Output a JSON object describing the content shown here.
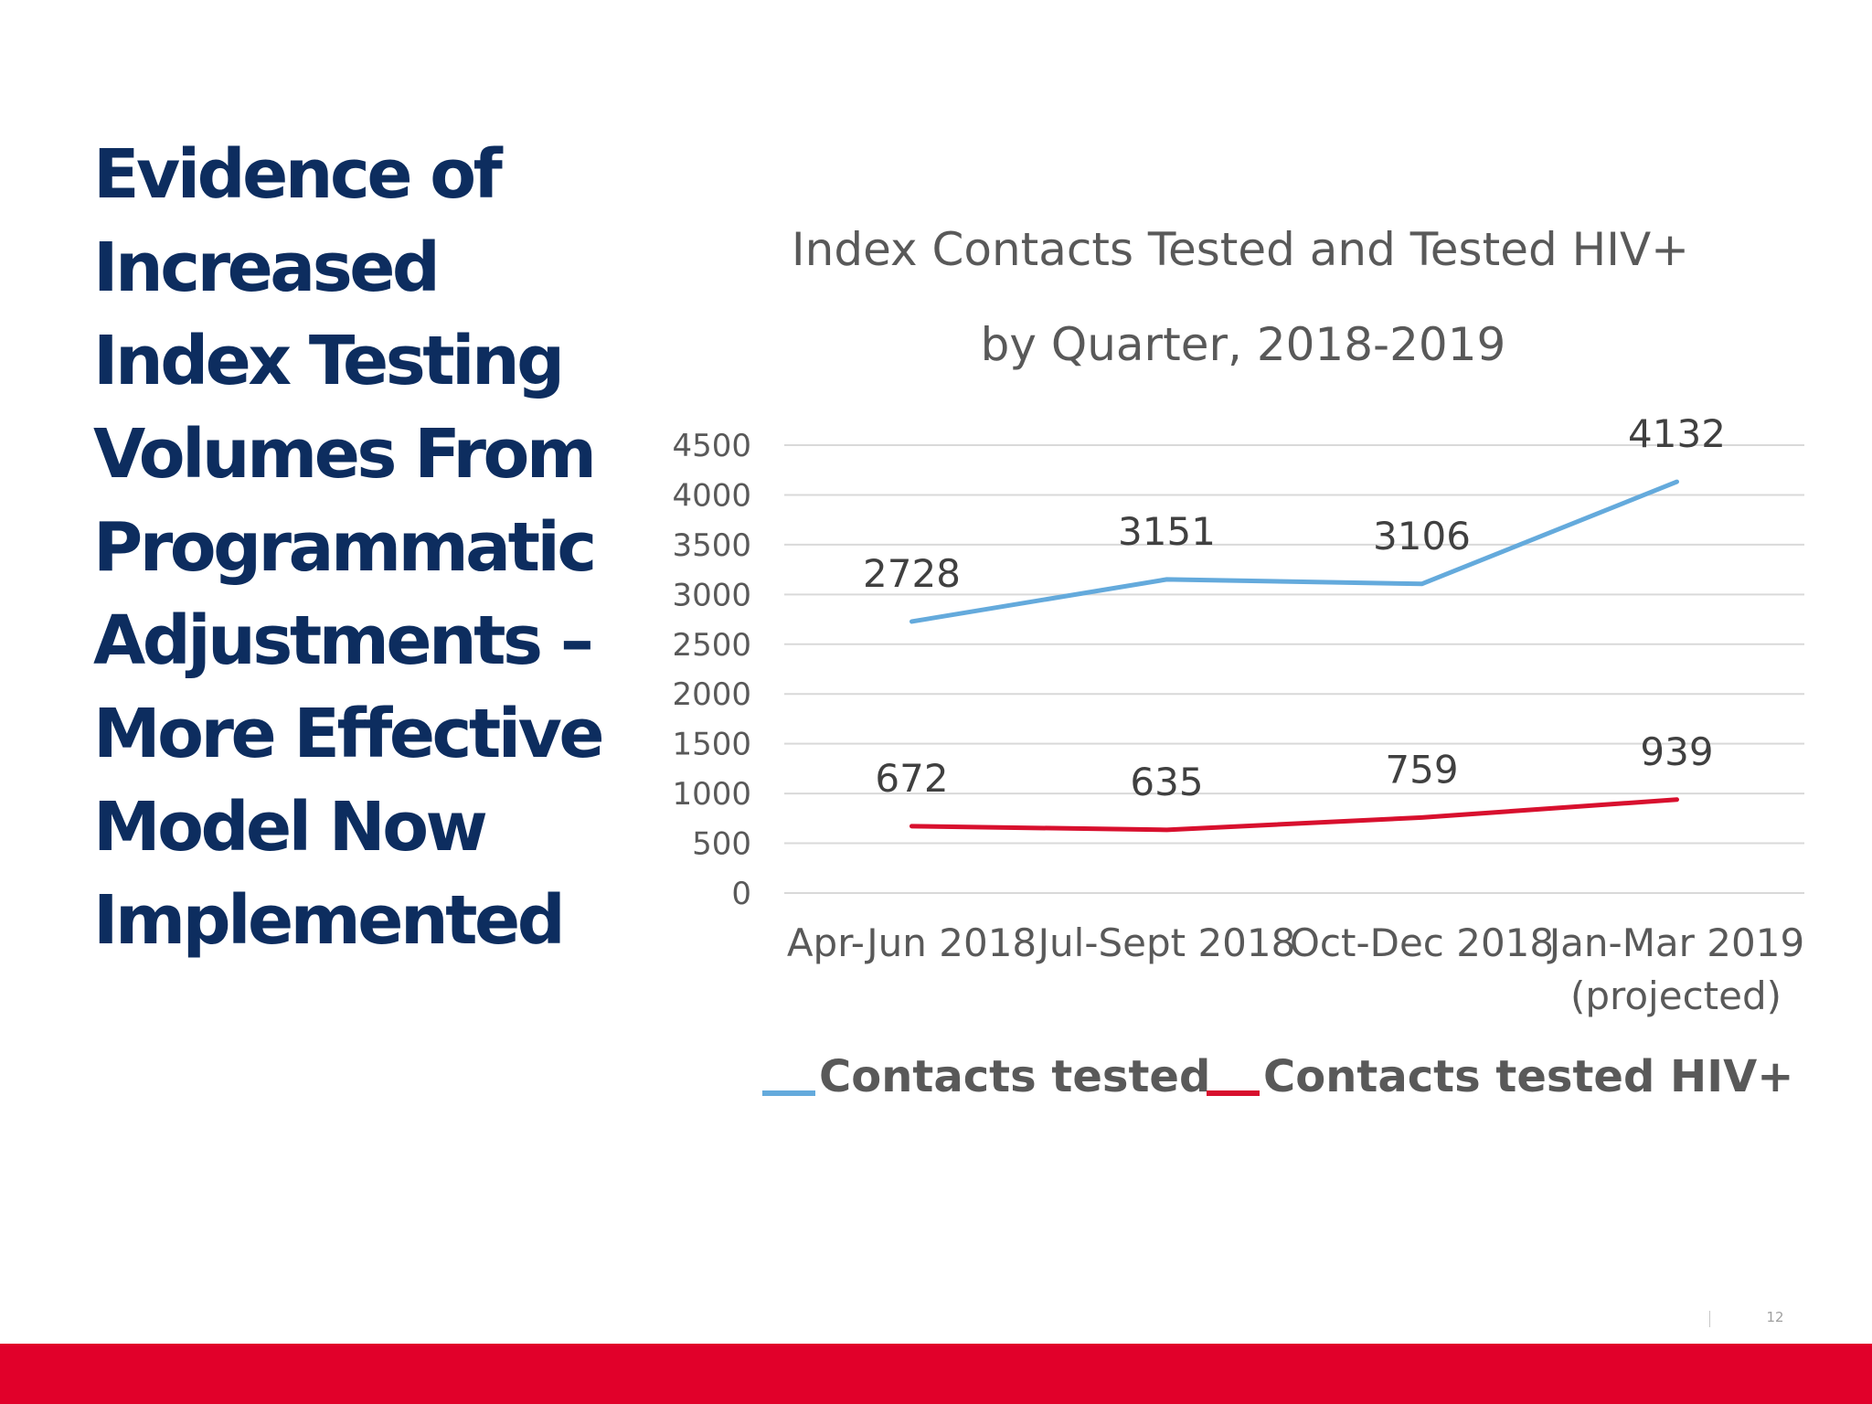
{
  "slide": {
    "title_lines": [
      "Evidence of",
      "Increased",
      "Index Testing",
      "Volumes From",
      "Programmatic",
      "Adjustments –",
      "More Effective",
      "Model Now",
      "Implemented"
    ],
    "page_number": "12",
    "footer_color": "#e1002a"
  },
  "chart_data": {
    "type": "line",
    "title": "Index Contacts Tested and Tested HIV+",
    "subtitle": "by Quarter, 2018-2019",
    "categories": [
      [
        "Apr-Jun 2018"
      ],
      [
        "Jul-Sept 2018"
      ],
      [
        "Oct-Dec 2018"
      ],
      [
        "Jan-Mar 2019",
        "(projected)"
      ]
    ],
    "ylim": [
      0,
      4500
    ],
    "yticks": [
      0,
      500,
      1000,
      1500,
      2000,
      2500,
      3000,
      3500,
      4000,
      4500
    ],
    "grid": true,
    "legend_position": "bottom",
    "series": [
      {
        "name": "Contacts tested",
        "color": "#64aadc",
        "values": [
          2728,
          3151,
          3106,
          4132
        ]
      },
      {
        "name": "Contacts tested HIV+",
        "color": "#d8102e",
        "values": [
          672,
          635,
          759,
          939
        ]
      }
    ]
  }
}
